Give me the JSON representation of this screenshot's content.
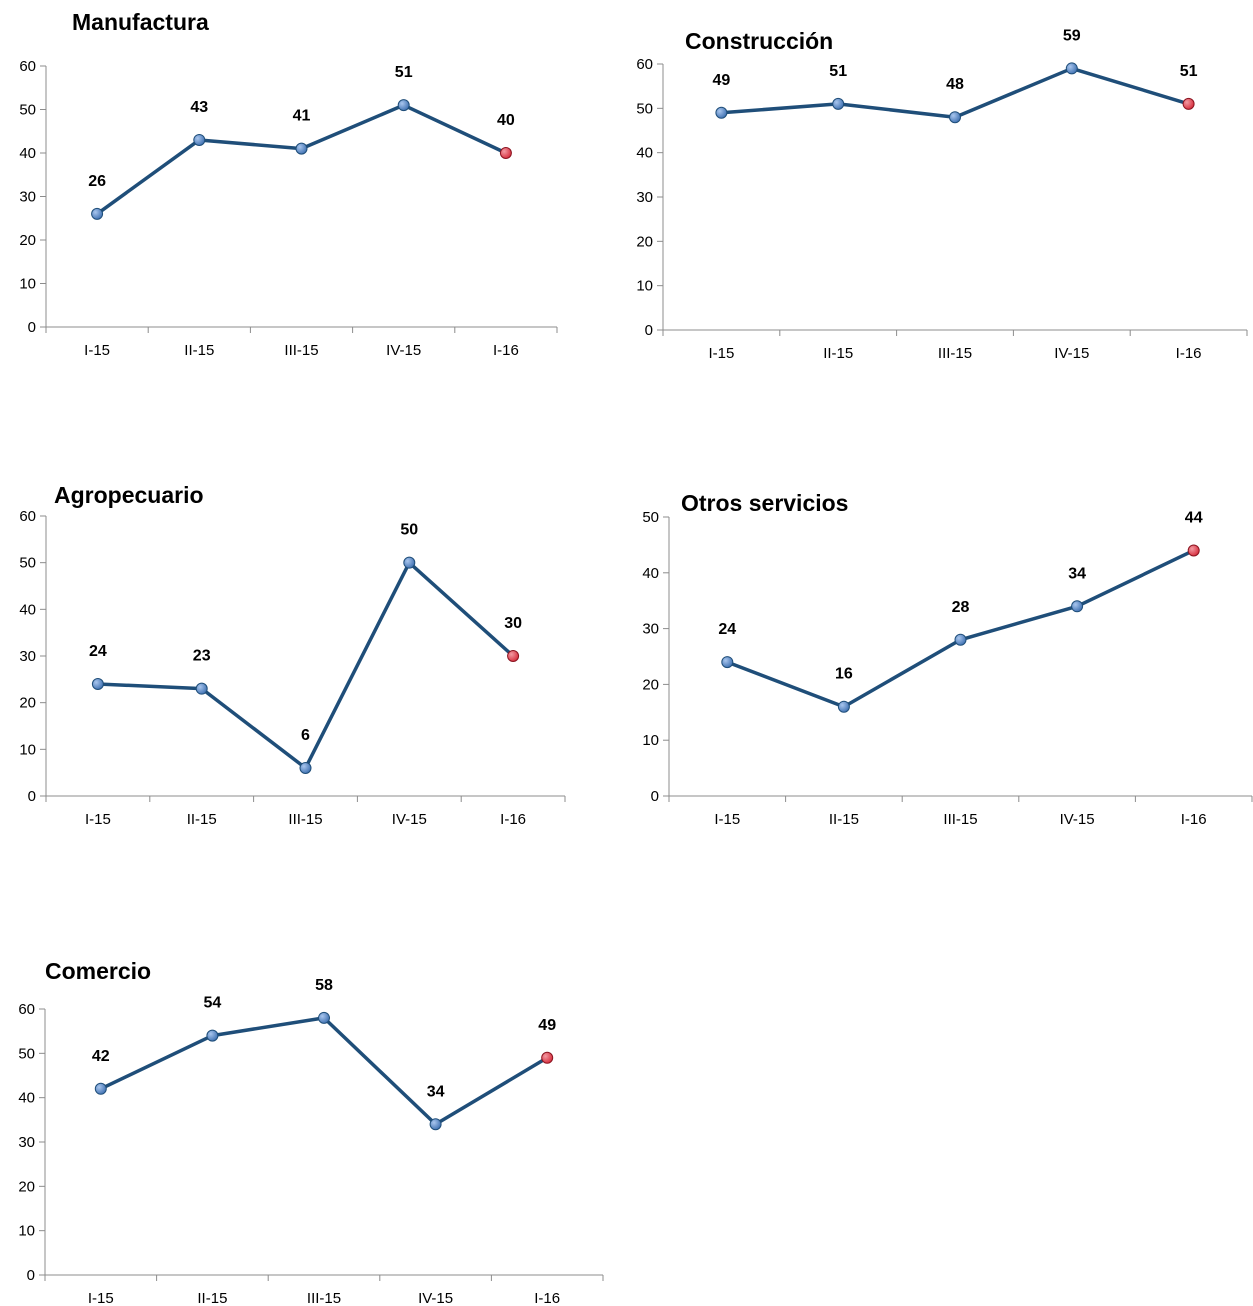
{
  "chart_data": [
    {
      "type": "line",
      "title": "Manufactura",
      "categories": [
        "I-15",
        "II-15",
        "III-15",
        "IV-15",
        "I-16"
      ],
      "series": [
        {
          "values": [
            26,
            43,
            41,
            51,
            40
          ]
        }
      ],
      "ylim": [
        0,
        60
      ],
      "yticks": [
        0,
        10,
        20,
        30,
        40,
        50,
        60
      ],
      "grid": false,
      "data_labels": true,
      "line_color": "#1f4e79",
      "marker_color": "#3d6fb0",
      "highlight_color": "#d62a3a"
    },
    {
      "type": "line",
      "title": "Construcción",
      "categories": [
        "I-15",
        "II-15",
        "III-15",
        "IV-15",
        "I-16"
      ],
      "series": [
        {
          "values": [
            49,
            51,
            48,
            59,
            51
          ]
        }
      ],
      "ylim": [
        0,
        60
      ],
      "yticks": [
        0,
        10,
        20,
        30,
        40,
        50,
        60
      ],
      "grid": false,
      "data_labels": true,
      "line_color": "#1f4e79",
      "marker_color": "#3d6fb0",
      "highlight_color": "#d62a3a"
    },
    {
      "type": "line",
      "title": "Agropecuario",
      "categories": [
        "I-15",
        "II-15",
        "III-15",
        "IV-15",
        "I-16"
      ],
      "series": [
        {
          "values": [
            24,
            23,
            6,
            50,
            30
          ]
        }
      ],
      "ylim": [
        0,
        60
      ],
      "yticks": [
        0,
        10,
        20,
        30,
        40,
        50,
        60
      ],
      "grid": false,
      "data_labels": true,
      "line_color": "#1f4e79",
      "marker_color": "#3d6fb0",
      "highlight_color": "#d62a3a"
    },
    {
      "type": "line",
      "title": "Otros servicios",
      "categories": [
        "I-15",
        "II-15",
        "III-15",
        "IV-15",
        "I-16"
      ],
      "series": [
        {
          "values": [
            24,
            16,
            28,
            34,
            44
          ]
        }
      ],
      "ylim": [
        0,
        50
      ],
      "yticks": [
        0,
        10,
        20,
        30,
        40,
        50
      ],
      "grid": false,
      "data_labels": true,
      "line_color": "#1f4e79",
      "marker_color": "#3d6fb0",
      "highlight_color": "#d62a3a"
    },
    {
      "type": "line",
      "title": "Comercio",
      "categories": [
        "I-15",
        "II-15",
        "III-15",
        "IV-15",
        "I-16"
      ],
      "series": [
        {
          "values": [
            42,
            54,
            58,
            34,
            49
          ]
        }
      ],
      "ylim": [
        0,
        60
      ],
      "yticks": [
        0,
        10,
        20,
        30,
        40,
        50,
        60
      ],
      "grid": false,
      "data_labels": true,
      "line_color": "#1f4e79",
      "marker_color": "#3d6fb0",
      "highlight_color": "#d62a3a"
    }
  ]
}
